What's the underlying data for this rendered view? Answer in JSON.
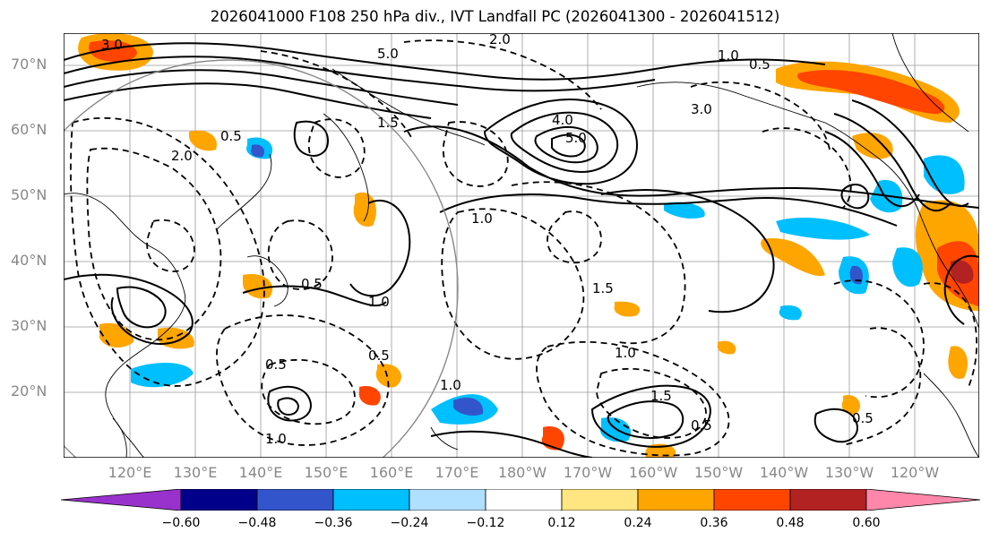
{
  "title": "2026041000 F108 250 hPa div., IVT Landfall PC (2026041300 - 2026041512)",
  "lat_ticks": [
    "70°N",
    "60°N",
    "50°N",
    "40°N",
    "30°N",
    "20°N"
  ],
  "lon_ticks": [
    "120°E",
    "130°E",
    "140°E",
    "150°E",
    "160°E",
    "170°E",
    "180°W",
    "170°W",
    "160°W",
    "150°W",
    "140°W",
    "130°W",
    "120°W"
  ],
  "colorbar": {
    "labels": [
      "−0.60",
      "−0.48",
      "−0.36",
      "−0.24",
      "−0.12",
      "0.12",
      "0.24",
      "0.36",
      "0.48",
      "0.60"
    ],
    "colors": [
      "#9932cc",
      "#00008b",
      "#3355cc",
      "#00bfff",
      "#b0e0ff",
      "#ffffff",
      "#ffe680",
      "#ffa500",
      "#ff4500",
      "#b22222",
      "#ff88aa"
    ]
  },
  "contour_labels": [
    "3.0",
    "5.0",
    "2.0",
    "1.0",
    "0.5",
    "4.0",
    "5.0",
    "1.5",
    "0.5",
    "3.0",
    "1.0",
    "2.0",
    "0.5",
    "1.0",
    "1.5",
    "0.5",
    "1.0",
    "0.5",
    "1.0",
    "1.5",
    "0.5",
    "1.0",
    "0.5"
  ]
}
